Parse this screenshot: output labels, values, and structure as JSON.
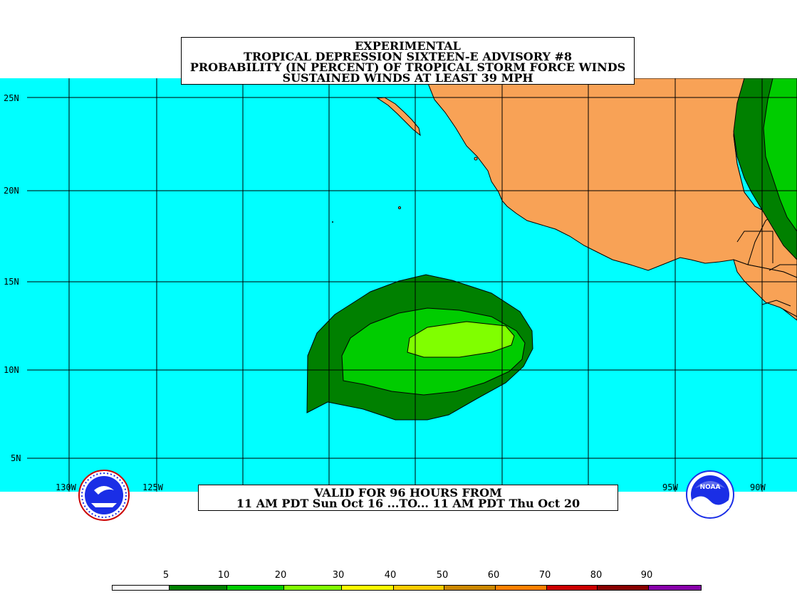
{
  "title": {
    "line1": "EXPERIMENTAL",
    "line2": "TROPICAL DEPRESSION SIXTEEN-E ADVISORY #8",
    "line3": "PROBABILITY (IN PERCENT) OF TROPICAL STORM FORCE WINDS",
    "line4": "SUSTAINED WINDS AT LEAST 39 MPH"
  },
  "valid": {
    "line1": "VALID FOR 96 HOURS FROM",
    "line2": "11 AM PDT Sun Oct 16 ...TO... 11 AM PDT Thu Oct 20"
  },
  "latitudes": [
    "25N",
    "20N",
    "15N",
    "10N",
    "5N"
  ],
  "longitudes": [
    "130W",
    "125W",
    "95W",
    "90W"
  ],
  "colors": {
    "ocean": "#00ffff",
    "land": "#f8a256",
    "prob_10": "#008000",
    "prob_20": "#00cc00",
    "prob_30": "#80ff00"
  },
  "legend": {
    "labels": [
      "5",
      "10",
      "20",
      "30",
      "40",
      "50",
      "60",
      "70",
      "80",
      "90"
    ],
    "colors": [
      "#ffffff",
      "#008000",
      "#00cc00",
      "#80ff00",
      "#ffff00",
      "#ffcc00",
      "#cc8800",
      "#ff8000",
      "#cc0000",
      "#880000",
      "#8800aa"
    ]
  },
  "logos": {
    "left": "nws-logo",
    "right": "noaa-logo",
    "right_text": "NOAA"
  }
}
